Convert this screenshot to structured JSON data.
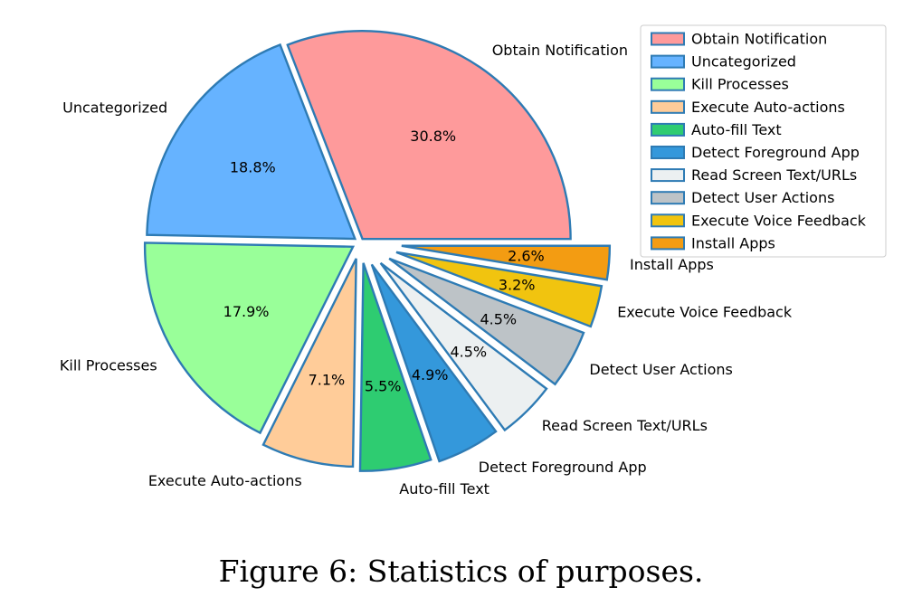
{
  "caption": "Figure 6: Statistics of purposes.",
  "chart_data": {
    "type": "pie",
    "title": "",
    "start_angle_deg": 0,
    "direction": "counterclockwise",
    "edge_color": "#2e7bb4",
    "legend_position": "top-right",
    "slices": [
      {
        "label": "Obtain Notification",
        "value": 30.8,
        "pct_label": "30.8%",
        "color": "#fe9a9b",
        "explode": 0.02
      },
      {
        "label": "Uncategorized",
        "value": 18.8,
        "pct_label": "18.8%",
        "color": "#66b3ff",
        "explode": 0.03
      },
      {
        "label": "Kill Processes",
        "value": 17.9,
        "pct_label": "17.9%",
        "color": "#99ff99",
        "explode": 0.04
      },
      {
        "label": "Execute Auto-actions",
        "value": 7.1,
        "pct_label": "7.1%",
        "color": "#ffcc99",
        "explode": 0.08
      },
      {
        "label": "Auto-fill Text",
        "value": 5.5,
        "pct_label": "5.5%",
        "color": "#2ecc71",
        "explode": 0.1
      },
      {
        "label": "Detect Foreground App",
        "value": 4.9,
        "pct_label": "4.9%",
        "color": "#3498db",
        "explode": 0.12
      },
      {
        "label": "Read Screen Text/URLs",
        "value": 4.5,
        "pct_label": "4.5%",
        "color": "#ecf0f1",
        "explode": 0.14
      },
      {
        "label": "Detect User Actions",
        "value": 4.5,
        "pct_label": "4.5%",
        "color": "#bdc3c7",
        "explode": 0.16
      },
      {
        "label": "Execute Voice Feedback",
        "value": 3.2,
        "pct_label": "3.2%",
        "color": "#f1c40f",
        "explode": 0.18
      },
      {
        "label": "Install Apps",
        "value": 2.6,
        "pct_label": "2.6%",
        "color": "#f39c12",
        "explode": 0.2
      }
    ]
  }
}
